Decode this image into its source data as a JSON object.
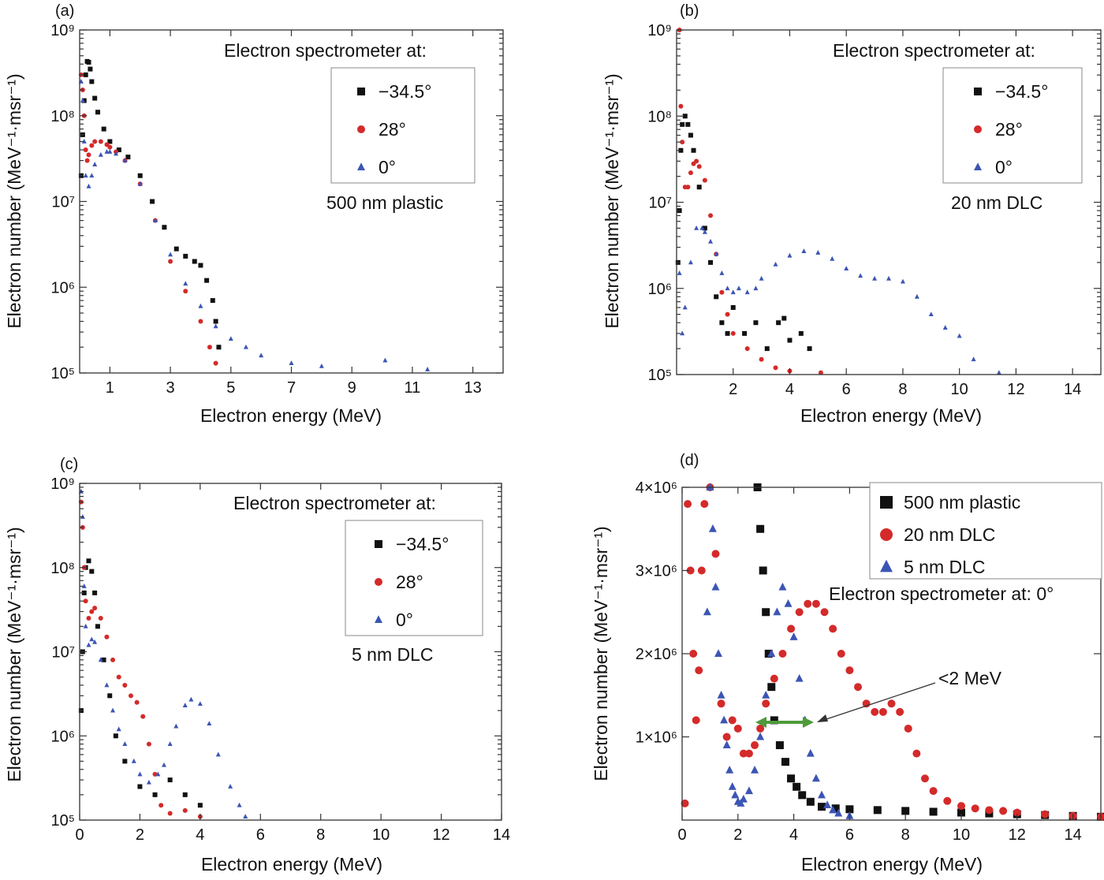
{
  "colors": {
    "black": "#111111",
    "red": "#d42a2a",
    "blue": "#3c55b4",
    "green": "#4f9a3a"
  },
  "panels": [
    {
      "label": "(a)",
      "heading": "Electron spectrometer at:",
      "legend": [
        "−34.5°",
        "28°",
        "0°"
      ],
      "note": "500 nm plastic",
      "chart_data": {
        "type": "scatter",
        "xlabel": "Electron energy (MeV)",
        "ylabel": "Electron number (MeV⁻¹·msr⁻¹)",
        "xlim": [
          0,
          14
        ],
        "ylim": [
          100000,
          1000000000
        ],
        "y_scale": "log",
        "x_ticks": [
          1,
          3,
          5,
          7,
          9,
          11,
          13
        ],
        "x_tick_labels": [
          "1",
          "3",
          "5",
          "7",
          "9",
          "11",
          "13"
        ],
        "y_tick_labels": [
          "10⁵",
          "10⁶",
          "10⁷",
          "10⁸",
          "10⁹"
        ],
        "series": [
          {
            "name": "−34.5°",
            "marker": "square",
            "color": "#111111",
            "x": [
              0.05,
              0.1,
              0.15,
              0.2,
              0.25,
              0.3,
              0.35,
              0.4,
              0.5,
              0.6,
              0.8,
              1.0,
              1.3,
              1.6,
              2.0,
              2.4,
              2.8,
              3.2,
              3.5,
              3.8,
              4.0,
              4.2,
              4.4,
              4.5,
              4.6
            ],
            "y": [
              20000000.0,
              60000000.0,
              150000000.0,
              300000000.0,
              430000000.0,
              420000000.0,
              350000000.0,
              250000000.0,
              160000000.0,
              110000000.0,
              70000000.0,
              50000000.0,
              40000000.0,
              33000000.0,
              20000000.0,
              10000000.0,
              5000000.0,
              2800000.0,
              2300000.0,
              2000000.0,
              1800000.0,
              1200000.0,
              700000.0,
              400000.0,
              200000.0
            ]
          },
          {
            "name": "28°",
            "marker": "circle",
            "color": "#d42a2a",
            "x": [
              0.05,
              0.1,
              0.15,
              0.2,
              0.25,
              0.3,
              0.4,
              0.5,
              0.7,
              0.9,
              1.0,
              1.2,
              1.5,
              2.0,
              2.5,
              3.0,
              3.5,
              4.0,
              4.3,
              4.5
            ],
            "y": [
              300000000.0,
              200000000.0,
              100000000.0,
              40000000.0,
              30000000.0,
              35000000.0,
              45000000.0,
              50000000.0,
              50000000.0,
              46000000.0,
              43000000.0,
              38000000.0,
              30000000.0,
              16000000.0,
              6000000.0,
              2000000.0,
              900000.0,
              400000.0,
              200000.0,
              130000.0
            ]
          },
          {
            "name": "0°",
            "marker": "triangle",
            "color": "#3c55b4",
            "x": [
              0.05,
              0.1,
              0.15,
              0.2,
              0.3,
              0.4,
              0.5,
              0.7,
              0.9,
              1.0,
              1.2,
              1.5,
              2.0,
              2.5,
              3.0,
              3.5,
              4.0,
              4.5,
              5.0,
              5.5,
              6.0,
              7.0,
              8.0,
              10.1,
              11.5
            ],
            "y": [
              250000000.0,
              150000000.0,
              50000000.0,
              20000000.0,
              15000000.0,
              20000000.0,
              27000000.0,
              35000000.0,
              38000000.0,
              38000000.0,
              36000000.0,
              30000000.0,
              16000000.0,
              6000000.0,
              2400000.0,
              1100000.0,
              600000.0,
              350000.0,
              250000.0,
              200000.0,
              160000.0,
              130000.0,
              120000.0,
              140000.0,
              110000.0
            ]
          }
        ]
      }
    },
    {
      "label": "(b)",
      "heading": "Electron spectrometer at:",
      "legend": [
        "−34.5°",
        "28°",
        "0°"
      ],
      "note": "20 nm DLC",
      "chart_data": {
        "type": "scatter",
        "xlabel": "Electron energy (MeV)",
        "ylabel": "Electron number (MeV⁻¹·msr⁻¹)",
        "xlim": [
          0,
          15
        ],
        "ylim": [
          100000,
          1000000000
        ],
        "y_scale": "log",
        "x_ticks": [
          2,
          4,
          6,
          8,
          10,
          12,
          14
        ],
        "x_tick_labels": [
          "2",
          "4",
          "6",
          "8",
          "10",
          "12",
          "14"
        ],
        "y_tick_labels": [
          "10⁵",
          "10⁶",
          "10⁷",
          "10⁸",
          "10⁹"
        ],
        "series": [
          {
            "name": "−34.5°",
            "marker": "square",
            "color": "#111111",
            "x": [
              0.05,
              0.1,
              0.15,
              0.2,
              0.3,
              0.4,
              0.5,
              0.6,
              0.8,
              1.0,
              1.2,
              1.4,
              1.6,
              1.8,
              2.0,
              2.4,
              2.8,
              3.2,
              3.6,
              3.8,
              4.0,
              4.4,
              4.7
            ],
            "y": [
              2000000.0,
              8000000.0,
              40000000.0,
              80000000.0,
              100000000.0,
              80000000.0,
              60000000.0,
              40000000.0,
              15000000.0,
              5000000.0,
              2000000.0,
              800000.0,
              400000.0,
              300000.0,
              600000.0,
              300000.0,
              400000.0,
              200000.0,
              400000.0,
              450000.0,
              250000.0,
              300000.0,
              200000.0
            ]
          },
          {
            "name": "28°",
            "marker": "circle",
            "color": "#d42a2a",
            "x": [
              0.1,
              0.15,
              0.2,
              0.3,
              0.4,
              0.5,
              0.6,
              0.7,
              0.8,
              1.0,
              1.2,
              1.4,
              1.6,
              1.8,
              2.0,
              2.5,
              3.0,
              3.5,
              4.0,
              5.1
            ],
            "y": [
              1000000000.0,
              130000000.0,
              50000000.0,
              15000000.0,
              15000000.0,
              22000000.0,
              28000000.0,
              30000000.0,
              26000000.0,
              18000000.0,
              7000000.0,
              2500000.0,
              900000.0,
              500000.0,
              300000.0,
              200000.0,
              150000.0,
              120000.0,
              110000.0,
              105000.0
            ]
          },
          {
            "name": "0°",
            "marker": "triangle",
            "color": "#3c55b4",
            "x": [
              0.1,
              0.2,
              0.3,
              0.5,
              0.7,
              0.9,
              1.0,
              1.2,
              1.4,
              1.6,
              1.8,
              2.0,
              2.2,
              2.5,
              2.8,
              3.0,
              3.5,
              4.0,
              4.5,
              5.0,
              5.5,
              6.0,
              6.5,
              7.0,
              7.5,
              8.0,
              8.5,
              9.0,
              9.5,
              10.0,
              10.5,
              11.4
            ],
            "y": [
              1500000.0,
              300000.0,
              600000.0,
              2000000.0,
              5000000.0,
              5000000.0,
              4500000.0,
              3500000.0,
              2500000.0,
              1500000.0,
              1000000.0,
              900000.0,
              1000000.0,
              900000.0,
              1000000.0,
              1300000.0,
              1900000.0,
              2400000.0,
              2700000.0,
              2600000.0,
              2200000.0,
              1700000.0,
              1400000.0,
              1300000.0,
              1300000.0,
              1200000.0,
              800000.0,
              500000.0,
              350000.0,
              280000.0,
              150000.0,
              105000.0
            ]
          }
        ]
      }
    },
    {
      "label": "(c)",
      "heading": "Electron spectrometer at:",
      "legend": [
        "−34.5°",
        "28°",
        "0°"
      ],
      "note": "5 nm DLC",
      "chart_data": {
        "type": "scatter",
        "xlabel": "Electron energy (MeV)",
        "ylabel": "Electron number (MeV⁻¹·msr⁻¹)",
        "xlim": [
          0,
          14
        ],
        "ylim": [
          100000,
          1000000000
        ],
        "y_scale": "log",
        "x_ticks": [
          0,
          2,
          4,
          6,
          8,
          10,
          12,
          14
        ],
        "x_tick_labels": [
          "0",
          "2",
          "4",
          "6",
          "8",
          "10",
          "12",
          "14"
        ],
        "y_tick_labels": [
          "10⁵",
          "10⁶",
          "10⁷",
          "10⁸",
          "10⁹"
        ],
        "series": [
          {
            "name": "−34.5°",
            "marker": "square",
            "color": "#111111",
            "x": [
              0.05,
              0.1,
              0.15,
              0.2,
              0.3,
              0.4,
              0.5,
              0.6,
              0.8,
              1.0,
              1.2,
              1.5,
              2.0,
              2.5,
              3.0,
              3.5,
              4.0
            ],
            "y": [
              2000000.0,
              10000000.0,
              50000000.0,
              100000000.0,
              120000000.0,
              90000000.0,
              50000000.0,
              20000000.0,
              8000000.0,
              3000000.0,
              1000000.0,
              500000.0,
              250000.0,
              200000.0,
              300000.0,
              200000.0,
              150000.0
            ]
          },
          {
            "name": "28°",
            "marker": "circle",
            "color": "#d42a2a",
            "x": [
              0.05,
              0.1,
              0.15,
              0.2,
              0.3,
              0.4,
              0.5,
              0.7,
              0.9,
              1.1,
              1.3,
              1.5,
              1.7,
              1.9,
              2.1,
              2.3,
              2.5,
              2.7,
              3.0,
              3.5,
              4.0
            ],
            "y": [
              600000000.0,
              300000000.0,
              100000000.0,
              40000000.0,
              25000000.0,
              30000000.0,
              33000000.0,
              25000000.0,
              15000000.0,
              8000000.0,
              5000000.0,
              4000000.0,
              3000000.0,
              2500000.0,
              1700000.0,
              800000.0,
              350000.0,
              150000.0,
              120000.0,
              130000.0,
              110000.0
            ]
          },
          {
            "name": "0°",
            "marker": "triangle",
            "color": "#3c55b4",
            "x": [
              0.05,
              0.1,
              0.15,
              0.2,
              0.3,
              0.4,
              0.5,
              0.7,
              0.9,
              1.1,
              1.3,
              1.5,
              1.8,
              2.0,
              2.3,
              2.6,
              2.8,
              3.0,
              3.2,
              3.5,
              3.7,
              4.0,
              4.3,
              4.6,
              5.0,
              5.3,
              5.5
            ],
            "y": [
              800000000.0,
              400000000.0,
              60000000.0,
              20000000.0,
              12000000.0,
              14000000.0,
              13000000.0,
              8000000.0,
              4000000.0,
              2000000.0,
              1200000.0,
              800000.0,
              500000.0,
              350000.0,
              280000.0,
              350000.0,
              450000.0,
              800000.0,
              1300000.0,
              2300000.0,
              2700000.0,
              2400000.0,
              1400000.0,
              600000.0,
              250000.0,
              150000.0,
              110000.0
            ]
          }
        ]
      }
    },
    {
      "label": "(d)",
      "legend": [
        "500 nm plastic",
        "20 nm DLC",
        "5 nm DLC"
      ],
      "note": "Electron spectrometer at: 0°",
      "annotation": "<2 MeV",
      "chart_data": {
        "type": "scatter",
        "xlabel": "Electron energy (MeV)",
        "ylabel": "Electron number (MeV⁻¹·msr⁻¹)",
        "xlim": [
          0,
          15
        ],
        "ylim": [
          0,
          4000000
        ],
        "y_scale": "linear",
        "x_ticks": [
          0,
          2,
          4,
          6,
          8,
          10,
          12,
          14
        ],
        "x_tick_labels": [
          "0",
          "2",
          "4",
          "6",
          "8",
          "10",
          "12",
          "14"
        ],
        "y_ticks": [
          1000000,
          2000000,
          3000000,
          4000000
        ],
        "y_tick_labels": [
          "1×10⁶",
          "2×10⁶",
          "3×10⁶",
          "4×10⁶"
        ],
        "series": [
          {
            "name": "500 nm plastic",
            "marker": "square",
            "color": "#111111",
            "x": [
              2.7,
              2.8,
              2.9,
              3.0,
              3.1,
              3.2,
              3.3,
              3.5,
              3.7,
              3.9,
              4.1,
              4.3,
              4.6,
              5.0,
              5.5,
              6.0,
              7.0,
              8.0,
              9.0,
              10.0,
              11.0,
              12.0,
              13.0,
              14.0,
              15.0
            ],
            "y": [
              4000000.0,
              3500000.0,
              3000000.0,
              2500000.0,
              2000000.0,
              1600000.0,
              1200000.0,
              900000.0,
              700000.0,
              500000.0,
              400000.0,
              300000.0,
              220000.0,
              160000.0,
              140000.0,
              130000.0,
              120000.0,
              110000.0,
              100000.0,
              90000.0,
              80000.0,
              70000.0,
              60000.0,
              50000.0,
              40000.0
            ]
          },
          {
            "name": "20 nm DLC",
            "marker": "circle",
            "color": "#d42a2a",
            "x": [
              0.1,
              0.2,
              0.3,
              0.4,
              0.5,
              0.6,
              0.7,
              0.8,
              1.0,
              1.2,
              1.4,
              1.6,
              1.8,
              2.0,
              2.2,
              2.4,
              2.6,
              2.8,
              3.0,
              3.3,
              3.6,
              3.9,
              4.2,
              4.5,
              4.8,
              5.1,
              5.4,
              5.7,
              6.0,
              6.3,
              6.6,
              6.9,
              7.2,
              7.5,
              7.8,
              8.1,
              8.4,
              8.7,
              9.0,
              9.5,
              10.0,
              10.5,
              11.0,
              11.5,
              12.0,
              13.0,
              14.0,
              15.0
            ],
            "y": [
              200000.0,
              3800000.0,
              3000000.0,
              2000000.0,
              1200000.0,
              1800000.0,
              3000000.0,
              3800000.0,
              4000000.0,
              3200000.0,
              1400000.0,
              1000000.0,
              1200000.0,
              1100000.0,
              800000.0,
              800000.0,
              900000.0,
              1100000.0,
              1400000.0,
              1700000.0,
              2000000.0,
              2300000.0,
              2500000.0,
              2600000.0,
              2600000.0,
              2500000.0,
              2300000.0,
              2000000.0,
              1800000.0,
              1600000.0,
              1400000.0,
              1300000.0,
              1300000.0,
              1400000.0,
              1300000.0,
              1100000.0,
              800000.0,
              500000.0,
              350000.0,
              230000.0,
              170000.0,
              140000.0,
              120000.0,
              110000.0,
              90000.0,
              70000.0,
              50000.0,
              40000.0
            ]
          },
          {
            "name": "5 nm DLC",
            "marker": "triangle",
            "color": "#3c55b4",
            "x": [
              0.9,
              1.0,
              1.1,
              1.2,
              1.3,
              1.4,
              1.5,
              1.6,
              1.7,
              1.8,
              1.9,
              2.0,
              2.1,
              2.2,
              2.4,
              2.6,
              2.8,
              3.0,
              3.2,
              3.4,
              3.6,
              3.8,
              4.0,
              4.2,
              4.4,
              4.6,
              4.8,
              5.0,
              5.2,
              5.4,
              5.6,
              6.0
            ],
            "y": [
              2500000.0,
              4000000.0,
              3500000.0,
              2800000.0,
              2000000.0,
              1500000.0,
              1200000.0,
              900000.0,
              600000.0,
              400000.0,
              300000.0,
              220000.0,
              200000.0,
              250000.0,
              350000.0,
              600000.0,
              1000000.0,
              1500000.0,
              2000000.0,
              2500000.0,
              2800000.0,
              2600000.0,
              2200000.0,
              1700000.0,
              1200000.0,
              800000.0,
              500000.0,
              300000.0,
              180000.0,
              120000.0,
              80000.0,
              50000.0
            ]
          }
        ]
      }
    }
  ]
}
